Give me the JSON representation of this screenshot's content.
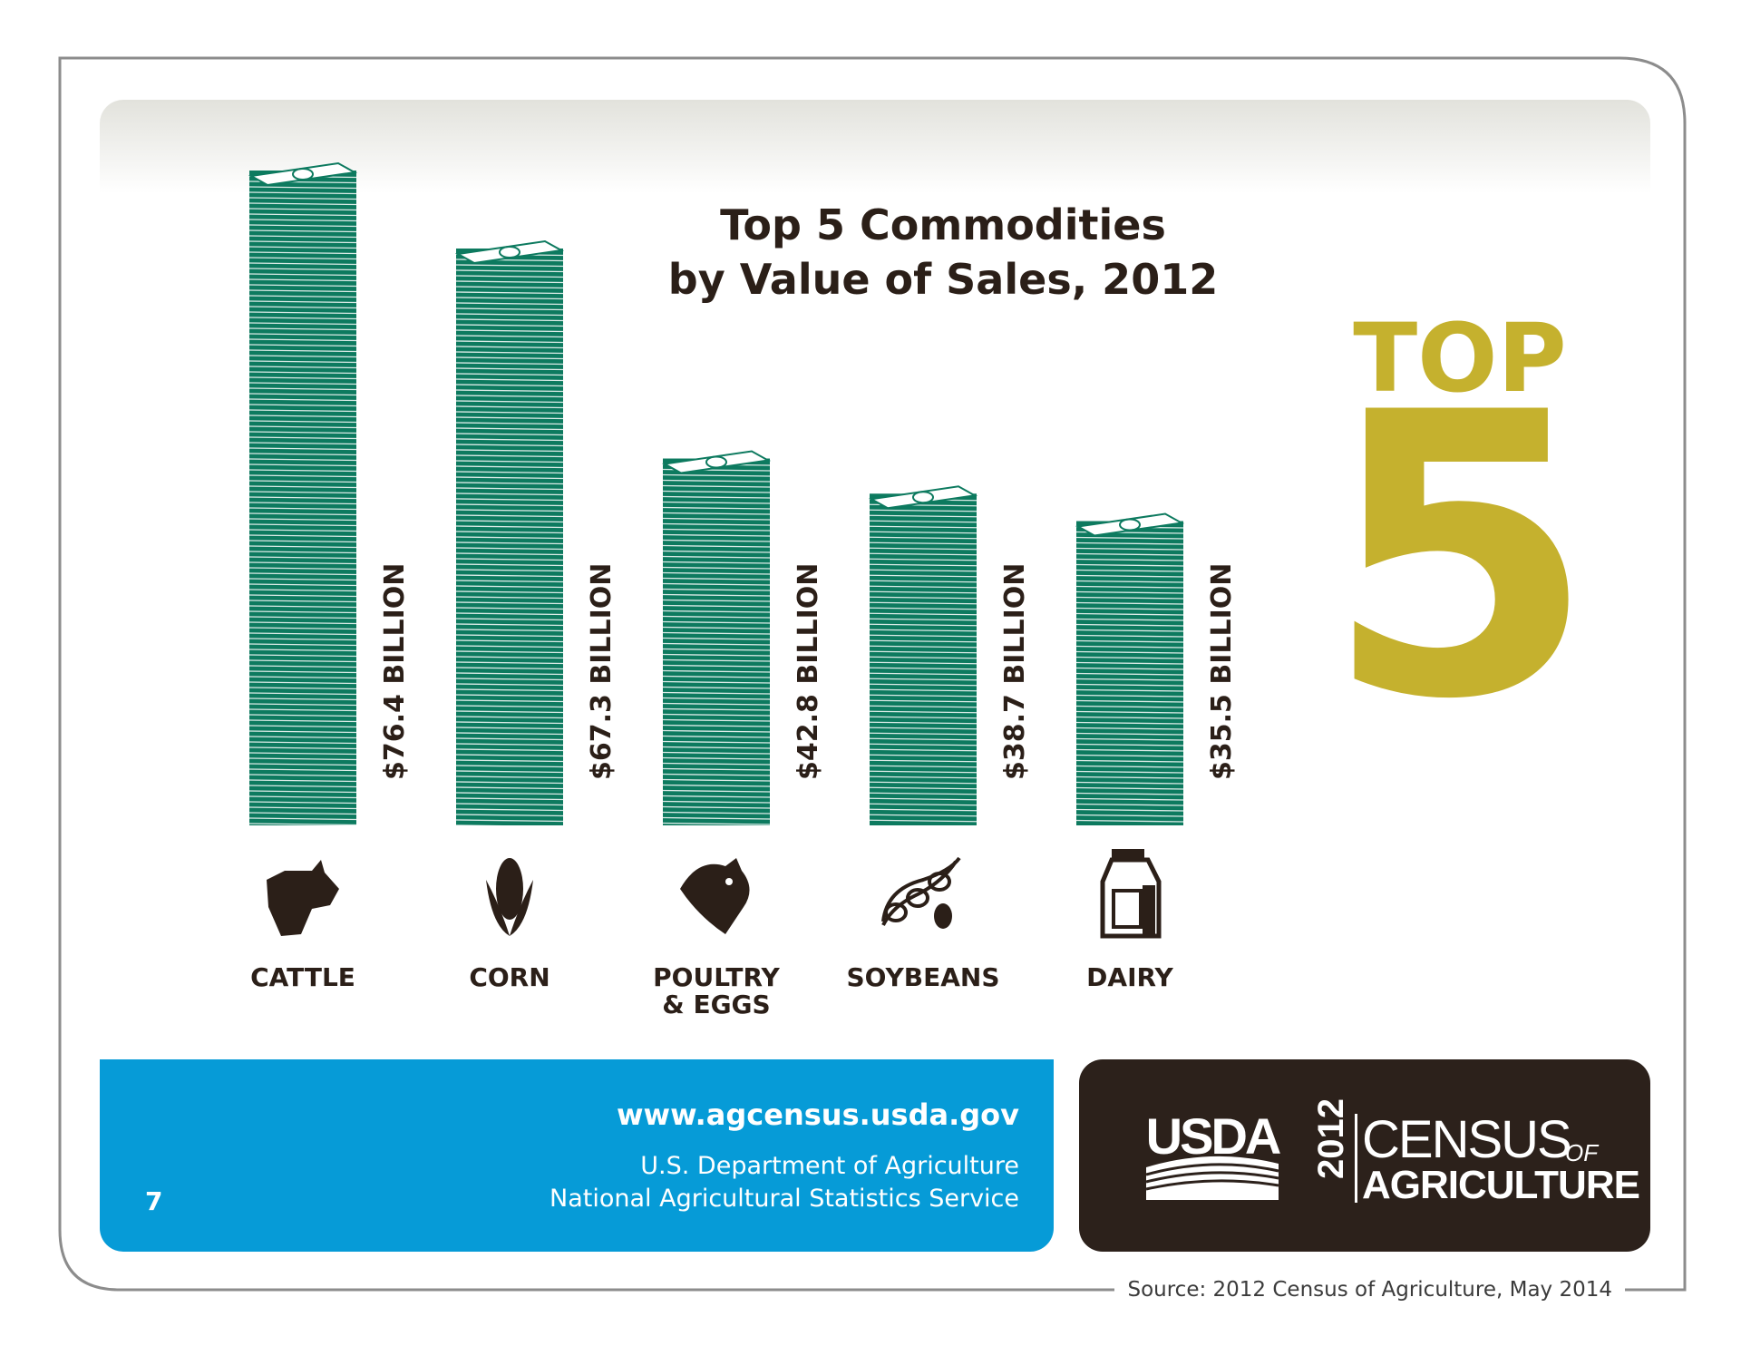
{
  "chart_data": {
    "type": "bar",
    "title": "Top 5 Commodities",
    "subtitle": "by Value of Sales, 2012",
    "categories": [
      "CATTLE",
      "CORN",
      "POULTRY\n& EGGS",
      "SOYBEANS",
      "DAIRY"
    ],
    "values": [
      76.4,
      67.3,
      42.8,
      38.7,
      35.5
    ],
    "data_labels": [
      "$76.4 BILLION",
      "$67.3 BILLION",
      "$42.8 BILLION",
      "$38.7 BILLION",
      "$35.5 BILLION"
    ],
    "icons": [
      "cow-icon",
      "corn-icon",
      "chicken-icon",
      "soybean-icon",
      "milk-carton-icon"
    ],
    "ylim": [
      0,
      76.4
    ],
    "grid": false,
    "legend": "none",
    "bar_color": "#0d7a5f"
  },
  "badge": {
    "word": "TOP",
    "number": "5",
    "color": "#c5b12e"
  },
  "footer": {
    "page_number": "7",
    "url": "www.agcensus.usda.gov",
    "agency_line_1": "U.S. Department of Agriculture",
    "agency_line_2": "National Agricultural Statistics Service",
    "blue_color": "#069bd7",
    "dark_color": "#2c211b"
  },
  "logo": {
    "usda": "USDA",
    "year": "2012",
    "census": "CENSUS",
    "of": "OF",
    "agriculture": "AGRICULTURE"
  },
  "source": "Source: 2012 Census of Agriculture, May 2014"
}
